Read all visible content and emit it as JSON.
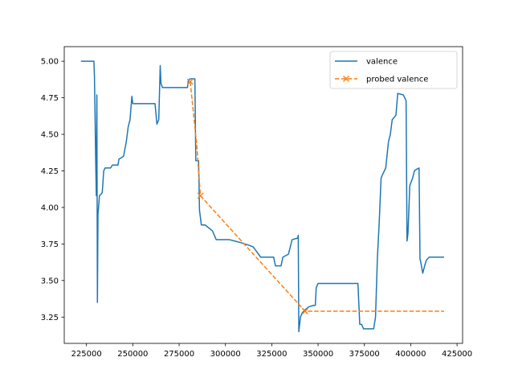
{
  "chart_data": {
    "type": "line",
    "title": "",
    "xlabel": "",
    "ylabel": "",
    "xlim": [
      213000,
      428000
    ],
    "ylim": [
      3.07,
      5.1
    ],
    "x_ticks": [
      225000,
      250000,
      275000,
      300000,
      325000,
      350000,
      375000,
      400000,
      425000
    ],
    "x_tick_labels": [
      "225000",
      "250000",
      "275000",
      "300000",
      "325000",
      "350000",
      "375000",
      "400000",
      "425000"
    ],
    "y_ticks": [
      3.25,
      3.5,
      3.75,
      4.0,
      4.25,
      4.5,
      4.75,
      5.0
    ],
    "y_tick_labels": [
      "3.25",
      "3.50",
      "3.75",
      "4.00",
      "4.25",
      "4.50",
      "4.75",
      "5.00"
    ],
    "grid": false,
    "legend": {
      "placement": "top-right"
    },
    "series": [
      {
        "name": "valence",
        "color": "#1f77b4",
        "style": "solid",
        "marker": "none",
        "points": [
          [
            222000,
            5.0
          ],
          [
            229000,
            5.0
          ],
          [
            229300,
            4.9
          ],
          [
            230000,
            4.3
          ],
          [
            230300,
            4.08
          ],
          [
            230600,
            4.77
          ],
          [
            230900,
            3.35
          ],
          [
            231200,
            3.95
          ],
          [
            232000,
            4.08
          ],
          [
            233500,
            4.1
          ],
          [
            234300,
            4.25
          ],
          [
            235000,
            4.27
          ],
          [
            238000,
            4.27
          ],
          [
            239000,
            4.29
          ],
          [
            242000,
            4.29
          ],
          [
            242500,
            4.33
          ],
          [
            245000,
            4.35
          ],
          [
            246500,
            4.45
          ],
          [
            247500,
            4.55
          ],
          [
            248500,
            4.6
          ],
          [
            249500,
            4.76
          ],
          [
            250000,
            4.71
          ],
          [
            254000,
            4.71
          ],
          [
            262000,
            4.71
          ],
          [
            263000,
            4.57
          ],
          [
            264000,
            4.6
          ],
          [
            264800,
            4.97
          ],
          [
            265200,
            4.85
          ],
          [
            266000,
            4.82
          ],
          [
            274000,
            4.82
          ],
          [
            279500,
            4.82
          ],
          [
            280000,
            4.87
          ],
          [
            281000,
            4.88
          ],
          [
            283500,
            4.88
          ],
          [
            284000,
            4.32
          ],
          [
            285500,
            4.32
          ],
          [
            286000,
            3.98
          ],
          [
            287000,
            3.88
          ],
          [
            289000,
            3.88
          ],
          [
            291000,
            3.86
          ],
          [
            293000,
            3.84
          ],
          [
            295000,
            3.78
          ],
          [
            302000,
            3.78
          ],
          [
            305000,
            3.77
          ],
          [
            308000,
            3.76
          ],
          [
            313000,
            3.74
          ],
          [
            315000,
            3.73
          ],
          [
            319000,
            3.66
          ],
          [
            322000,
            3.66
          ],
          [
            326000,
            3.66
          ],
          [
            327000,
            3.6
          ],
          [
            330000,
            3.6
          ],
          [
            331000,
            3.66
          ],
          [
            334000,
            3.68
          ],
          [
            336000,
            3.78
          ],
          [
            339000,
            3.79
          ],
          [
            339300,
            3.81
          ],
          [
            339600,
            3.15
          ],
          [
            340500,
            3.25
          ],
          [
            341500,
            3.28
          ],
          [
            343000,
            3.3
          ],
          [
            345000,
            3.32
          ],
          [
            347500,
            3.33
          ],
          [
            348500,
            3.33
          ],
          [
            349000,
            3.45
          ],
          [
            350000,
            3.48
          ],
          [
            355000,
            3.48
          ],
          [
            360000,
            3.48
          ],
          [
            365000,
            3.48
          ],
          [
            370000,
            3.48
          ],
          [
            371500,
            3.48
          ],
          [
            372500,
            3.2
          ],
          [
            373500,
            3.2
          ],
          [
            374500,
            3.17
          ],
          [
            380000,
            3.17
          ],
          [
            381000,
            3.25
          ],
          [
            382000,
            3.65
          ],
          [
            383000,
            3.9
          ],
          [
            384000,
            4.2
          ],
          [
            385000,
            4.23
          ],
          [
            386500,
            4.27
          ],
          [
            388000,
            4.45
          ],
          [
            389000,
            4.5
          ],
          [
            390000,
            4.6
          ],
          [
            392000,
            4.63
          ],
          [
            393000,
            4.78
          ],
          [
            396000,
            4.77
          ],
          [
            397500,
            4.73
          ],
          [
            398000,
            3.77
          ],
          [
            398500,
            3.82
          ],
          [
            399500,
            4.15
          ],
          [
            401000,
            4.2
          ],
          [
            402000,
            4.25
          ],
          [
            403000,
            4.26
          ],
          [
            404500,
            4.27
          ],
          [
            405000,
            3.65
          ],
          [
            405500,
            3.62
          ],
          [
            406500,
            3.55
          ],
          [
            407500,
            3.6
          ],
          [
            408500,
            3.64
          ],
          [
            410000,
            3.66
          ],
          [
            414000,
            3.66
          ],
          [
            418000,
            3.66
          ]
        ]
      },
      {
        "name": "probed valence",
        "color": "#ff7f0e",
        "style": "dashed",
        "marker": "x",
        "points": [
          [
            281000,
            4.86
          ],
          [
            284500,
            4.43
          ],
          [
            286500,
            4.08
          ],
          [
            343000,
            3.29
          ],
          [
            418000,
            3.29
          ]
        ],
        "marked_points": [
          [
            281000,
            4.86
          ],
          [
            286500,
            4.08
          ],
          [
            343000,
            3.29
          ]
        ]
      }
    ]
  }
}
